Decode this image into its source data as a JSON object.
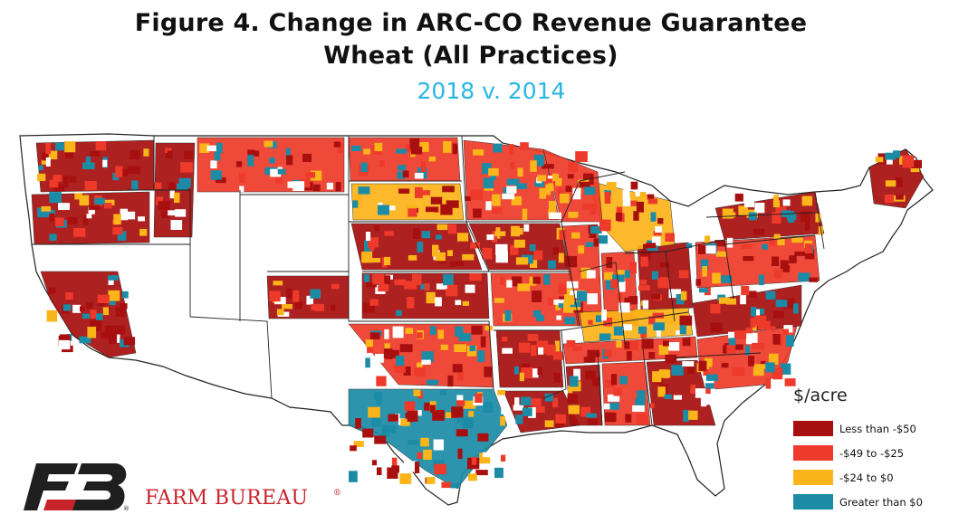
{
  "title": {
    "line1": "Figure 4. Change in ARC-CO Revenue Guarantee",
    "line2": "Wheat (All Practices)"
  },
  "subtitle": "2018 v. 2014",
  "legend": {
    "title": "$/acre",
    "items": [
      {
        "label": "Less than -$50",
        "color": "#a80f0f"
      },
      {
        "label": "-$49 to -$25",
        "color": "#ee3a2a"
      },
      {
        "label": "-$24 to $0",
        "color": "#fbb41a"
      },
      {
        "label": "Greater than $0",
        "color": "#1b8ba6"
      }
    ]
  },
  "brand": {
    "name": "FARM BUREAU",
    "reg": "®",
    "logo_reg": "®",
    "text_color": "#c8242b",
    "logo_colors": [
      "#1f1f1f",
      "#c8242b"
    ]
  },
  "map": {
    "no_data_color": "#ffffff",
    "border_color": "#222222",
    "regions": [
      {
        "name": "washington",
        "cat": 0
      },
      {
        "name": "oregon",
        "cat": 0
      },
      {
        "name": "idaho",
        "cat": 0
      },
      {
        "name": "montana",
        "cat": 1
      },
      {
        "name": "north-dakota",
        "cat": 1
      },
      {
        "name": "south-dakota",
        "cat": 2
      },
      {
        "name": "nebraska",
        "cat": 0
      },
      {
        "name": "kansas",
        "cat": 0
      },
      {
        "name": "oklahoma",
        "cat": 1
      },
      {
        "name": "texas",
        "cat": 3
      },
      {
        "name": "minnesota",
        "cat": 1
      },
      {
        "name": "iowa",
        "cat": 0
      },
      {
        "name": "missouri",
        "cat": 1
      },
      {
        "name": "arkansas",
        "cat": 0
      },
      {
        "name": "louisiana",
        "cat": 0
      },
      {
        "name": "illinois",
        "cat": 1
      },
      {
        "name": "indiana",
        "cat": 1
      },
      {
        "name": "ohio",
        "cat": 0
      },
      {
        "name": "kentucky",
        "cat": 2
      },
      {
        "name": "tennessee",
        "cat": 1
      },
      {
        "name": "mississippi",
        "cat": 0
      },
      {
        "name": "alabama",
        "cat": 1
      },
      {
        "name": "georgia",
        "cat": 0
      },
      {
        "name": "carolinas",
        "cat": 1
      },
      {
        "name": "virginia",
        "cat": 0
      },
      {
        "name": "pennsylvania",
        "cat": 1
      },
      {
        "name": "new-york",
        "cat": 0
      },
      {
        "name": "michigan",
        "cat": 2
      },
      {
        "name": "wisconsin",
        "cat": 1
      },
      {
        "name": "maine",
        "cat": 0
      },
      {
        "name": "california",
        "cat": 0
      },
      {
        "name": "colorado",
        "cat": 0
      }
    ]
  }
}
